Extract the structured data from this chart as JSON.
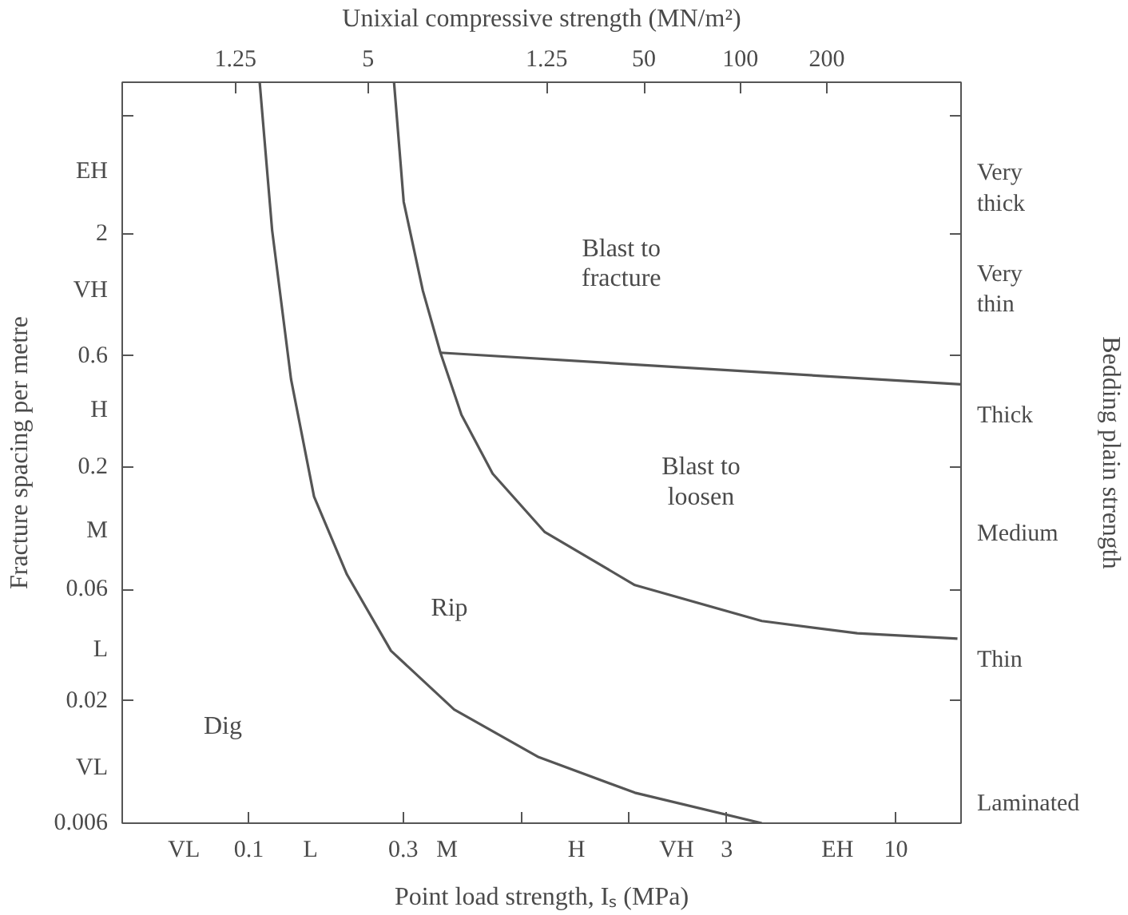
{
  "chart_data": {
    "type": "line",
    "xlabel": "Point load strength, Iₛ (MPa)",
    "ylabel": "Fracture spacing per metre",
    "x2label": "Unixial compressive strength (MN/m²)",
    "log": "xy",
    "grid": false,
    "marker": "none",
    "line_style": "solid",
    "xlim": [
      0.0406,
      15.9
    ],
    "ylim": [
      0.006,
      8.9
    ],
    "xticks": [
      {
        "value": 0.063,
        "label": "VL"
      },
      0.1,
      {
        "value": 0.155,
        "label": "L"
      },
      0.3,
      {
        "value": 0.41,
        "label": "M"
      },
      {
        "value": 0.7,
        "label": null
      },
      {
        "value": 1.03,
        "label": "H"
      },
      {
        "value": 1.5,
        "label": null
      },
      {
        "value": 2.1,
        "label": "VH"
      },
      3,
      {
        "value": 6.6,
        "label": "EH"
      },
      10
    ],
    "yticks": [
      0.006,
      {
        "value": 0.0103,
        "label": "VL"
      },
      0.02,
      {
        "value": 0.033,
        "label": "L"
      },
      0.06,
      {
        "value": 0.107,
        "label": "M"
      },
      0.2,
      {
        "value": 0.35,
        "label": "H"
      },
      0.6,
      {
        "value": 1.14,
        "label": "VH"
      },
      2,
      {
        "value": 3.7,
        "label": "EH"
      },
      {
        "value": 6.4,
        "label": null
      }
    ],
    "series": [
      {
        "color": "#555555",
        "x": [
          0.108,
          0.118,
          0.135,
          0.159,
          0.201,
          0.275,
          0.431,
          0.787,
          1.56,
          3.85
        ],
        "values": [
          8.9,
          2.07,
          0.477,
          0.15,
          0.0696,
          0.0328,
          0.0184,
          0.0115,
          0.0081,
          0.006
        ]
      },
      {
        "color": "#555555",
        "x": [
          0.281,
          0.301,
          0.345,
          0.391,
          0.454,
          0.567,
          0.82,
          1.56,
          3.85,
          7.6,
          15.5
        ],
        "values": [
          8.9,
          2.74,
          1.14,
          0.619,
          0.336,
          0.188,
          0.106,
          0.0627,
          0.044,
          0.039,
          0.037
        ]
      },
      {
        "color": "#555555",
        "x": [
          0.391,
          15.9
        ],
        "values": [
          0.619,
          0.453
        ]
      }
    ],
    "annotations": [
      "1.25",
      "5",
      "1.25",
      "50",
      "100",
      "200",
      "Very\nthick",
      "Very\nthin",
      "Thick",
      "Medium",
      "Thin",
      "Laminated",
      "Blast to\nfracture",
      "Blast to\nloosen",
      "Rip",
      "Dig",
      "Bedding plain strength"
    ]
  }
}
